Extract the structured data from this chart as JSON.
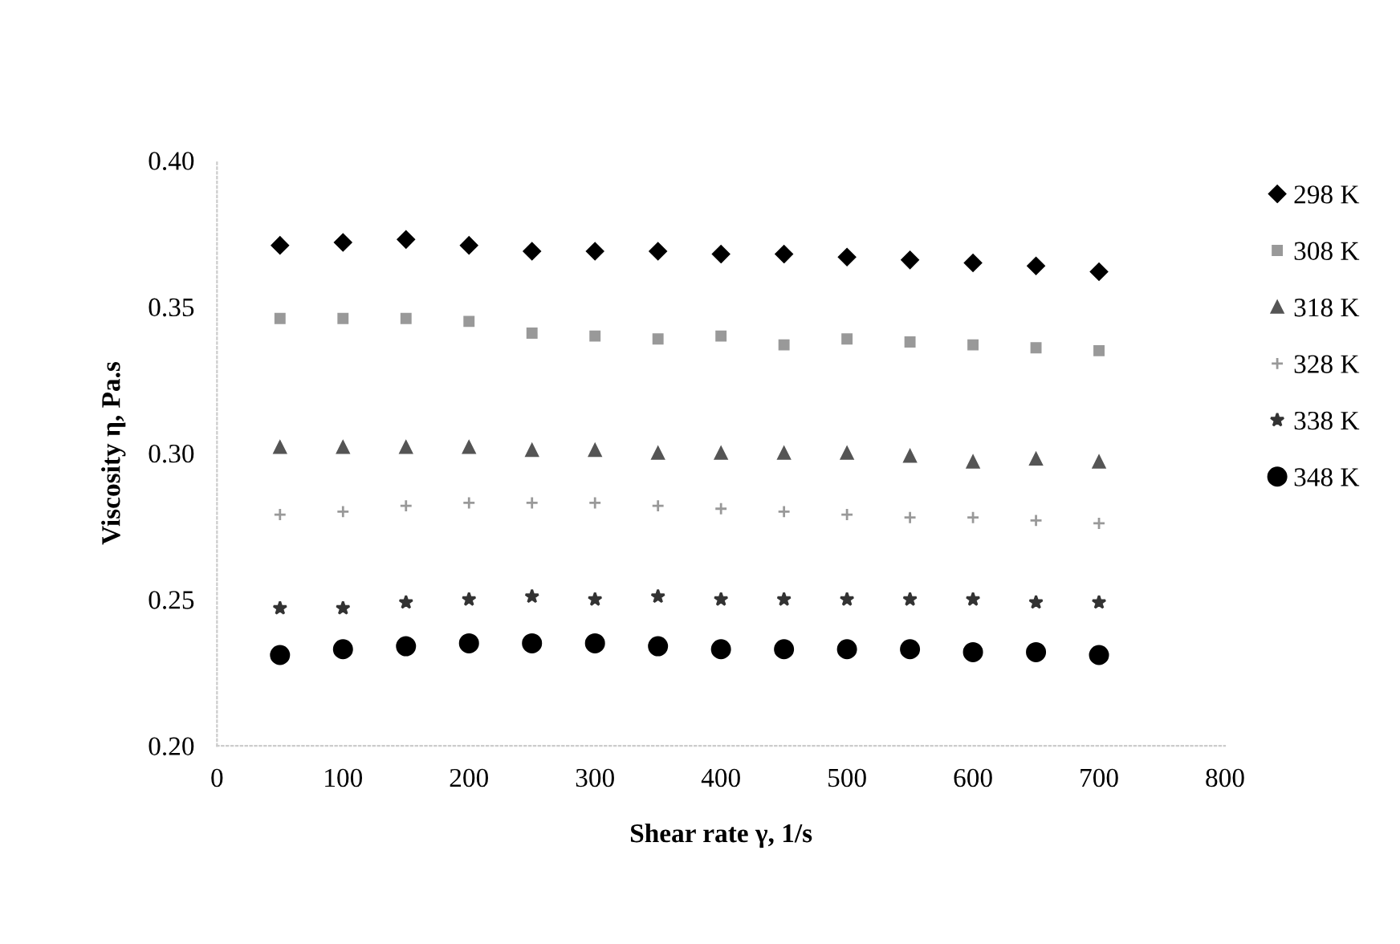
{
  "chart_data": {
    "type": "scatter",
    "xlabel": "Shear rate γ, 1/s",
    "ylabel": "Viscosity η, Pa.s",
    "x": [
      50,
      100,
      150,
      200,
      250,
      300,
      350,
      400,
      450,
      500,
      550,
      600,
      650,
      700
    ],
    "xlim": [
      0,
      800
    ],
    "xticks": [
      0,
      100,
      200,
      300,
      400,
      500,
      600,
      700,
      800
    ],
    "ylim": [
      0.2,
      0.4
    ],
    "yticks": [
      {
        "value": 0.2,
        "label": "0.20"
      },
      {
        "value": 0.25,
        "label": "0.25"
      },
      {
        "value": 0.3,
        "label": "0.30"
      },
      {
        "value": 0.35,
        "label": "0.35"
      },
      {
        "value": 0.4,
        "label": "0.40"
      }
    ],
    "grid": false,
    "legend": "right",
    "series": [
      {
        "name": "298 K",
        "color": "#000000",
        "marker": "diamond",
        "values": [
          0.371,
          0.372,
          0.373,
          0.371,
          0.369,
          0.369,
          0.369,
          0.368,
          0.368,
          0.367,
          0.366,
          0.365,
          0.364,
          0.362
        ]
      },
      {
        "name": "308 K",
        "color": "#999999",
        "marker": "square",
        "values": [
          0.346,
          0.346,
          0.346,
          0.345,
          0.341,
          0.34,
          0.339,
          0.34,
          0.337,
          0.339,
          0.338,
          0.337,
          0.336,
          0.335
        ]
      },
      {
        "name": "318 K",
        "color": "#555555",
        "marker": "triangle",
        "values": [
          0.302,
          0.302,
          0.302,
          0.302,
          0.301,
          0.301,
          0.3,
          0.3,
          0.3,
          0.3,
          0.299,
          0.297,
          0.298,
          0.297
        ]
      },
      {
        "name": "328 K",
        "color": "#999999",
        "marker": "cross",
        "values": [
          0.279,
          0.28,
          0.282,
          0.283,
          0.283,
          0.283,
          0.282,
          0.281,
          0.28,
          0.279,
          0.278,
          0.278,
          0.277,
          0.276
        ]
      },
      {
        "name": "338 K",
        "color": "#333333",
        "marker": "star",
        "values": [
          0.247,
          0.247,
          0.249,
          0.25,
          0.251,
          0.25,
          0.251,
          0.25,
          0.25,
          0.25,
          0.25,
          0.25,
          0.249,
          0.249
        ]
      },
      {
        "name": "348 K",
        "color": "#000000",
        "marker": "circle",
        "values": [
          0.231,
          0.233,
          0.234,
          0.235,
          0.235,
          0.235,
          0.234,
          0.233,
          0.233,
          0.233,
          0.233,
          0.232,
          0.232,
          0.231
        ]
      }
    ]
  }
}
